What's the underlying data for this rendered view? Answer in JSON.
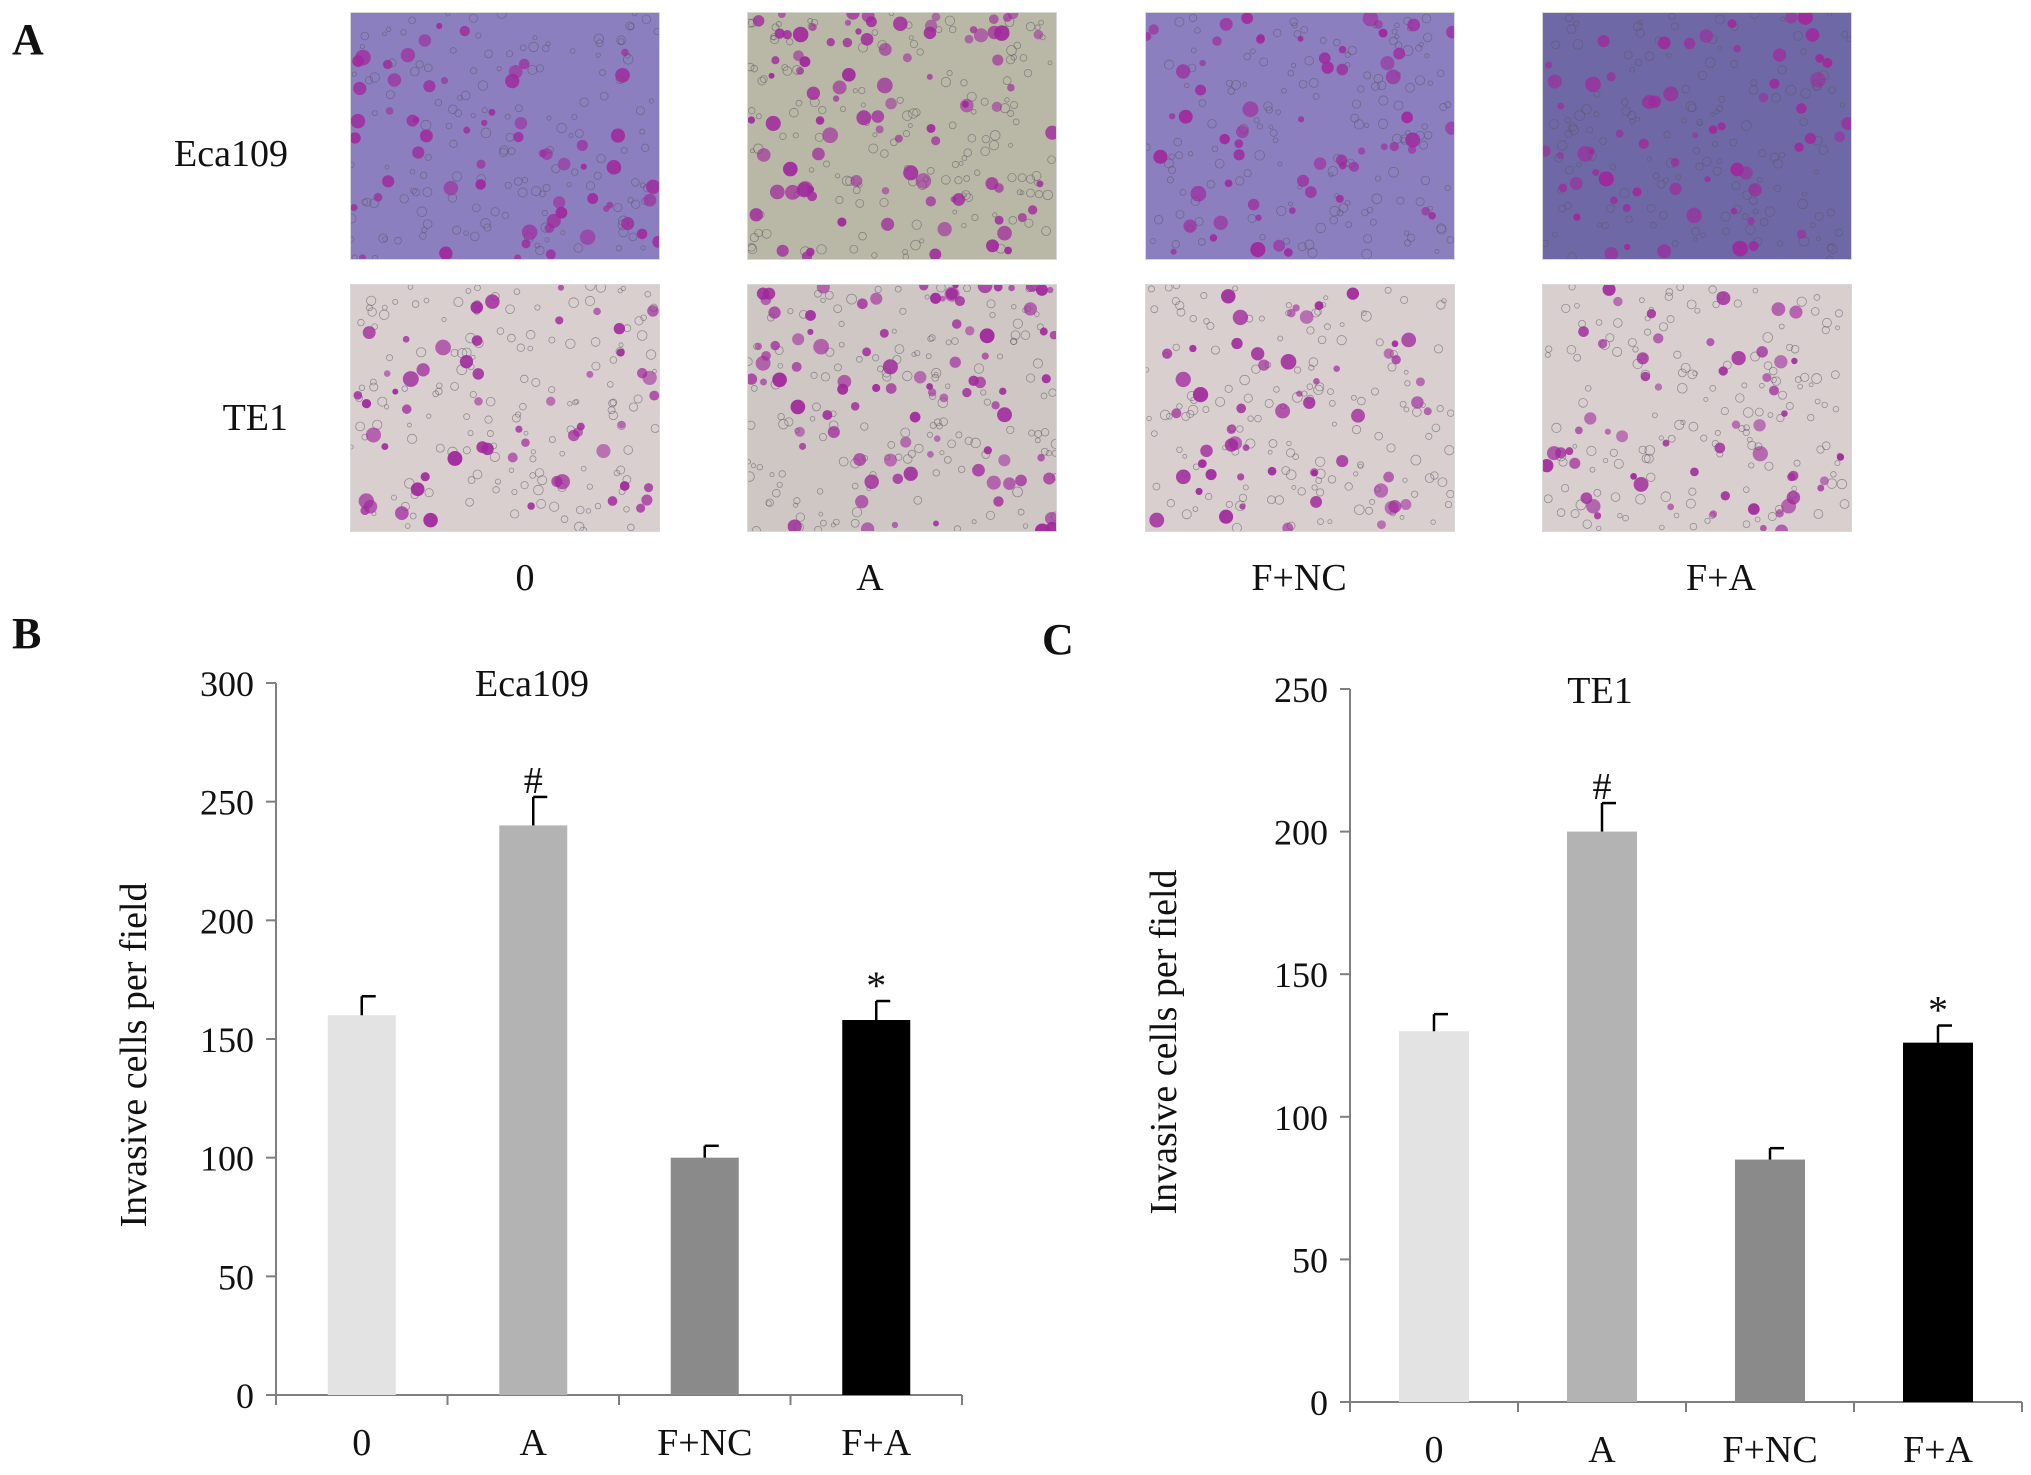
{
  "panels": {
    "a": {
      "letter": "A"
    },
    "b": {
      "letter": "B"
    },
    "c": {
      "letter": "C"
    }
  },
  "micrographs": {
    "rows": [
      {
        "label": "Eca109",
        "tint": "#8b7fbf"
      },
      {
        "label": "TE1",
        "tint": "#d9cfcf"
      }
    ],
    "columns": [
      "0",
      "A",
      "F+NC",
      "F+A"
    ],
    "stain_color": "#a0289c"
  },
  "colors": {
    "bar_0": "#e3e3e3",
    "bar_A": "#b3b3b3",
    "bar_FNC": "#8a8a8a",
    "bar_FA": "#000000",
    "axis": "#7f7f7f"
  },
  "chart_data": [
    {
      "type": "bar",
      "title": "Eca109",
      "ylabel": "Invasive cells per field",
      "categories": [
        "0",
        "A",
        "F+NC",
        "F+A"
      ],
      "values": [
        160,
        240,
        100,
        158
      ],
      "errors": [
        8,
        12,
        5,
        8
      ],
      "annotations": [
        "",
        "#",
        "",
        "*"
      ],
      "ylim": [
        0,
        300
      ],
      "yticks": [
        0,
        50,
        100,
        150,
        200,
        250,
        300
      ],
      "grid": false
    },
    {
      "type": "bar",
      "title": "TE1",
      "ylabel": "Invasive cells per field",
      "categories": [
        "0",
        "A",
        "F+NC",
        "F+A"
      ],
      "values": [
        130,
        200,
        85,
        126
      ],
      "errors": [
        6,
        10,
        4,
        6
      ],
      "annotations": [
        "",
        "#",
        "",
        "*"
      ],
      "ylim": [
        0,
        250
      ],
      "yticks": [
        0,
        50,
        100,
        150,
        200,
        250
      ],
      "grid": false
    }
  ]
}
